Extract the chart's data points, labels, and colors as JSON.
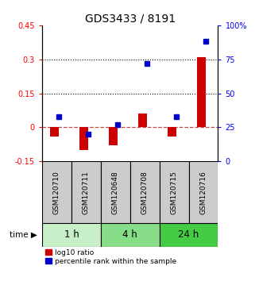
{
  "title": "GDS3433 / 8191",
  "samples": [
    "GSM120710",
    "GSM120711",
    "GSM120648",
    "GSM120708",
    "GSM120715",
    "GSM120716"
  ],
  "log10_ratio": [
    -0.04,
    -0.1,
    -0.08,
    0.06,
    -0.04,
    0.31
  ],
  "percentile_rank": [
    33,
    20,
    27,
    72,
    33,
    88
  ],
  "groups": [
    {
      "label": "1 h",
      "indices": [
        0,
        1
      ],
      "color": "#c8f0c8"
    },
    {
      "label": "4 h",
      "indices": [
        2,
        3
      ],
      "color": "#88dd88"
    },
    {
      "label": "24 h",
      "indices": [
        4,
        5
      ],
      "color": "#44cc44"
    }
  ],
  "bar_color_red": "#cc0000",
  "bar_color_blue": "#0000cc",
  "left_ylim": [
    -0.15,
    0.45
  ],
  "right_ylim": [
    0,
    100
  ],
  "left_yticks": [
    -0.15,
    0,
    0.15,
    0.3,
    0.45
  ],
  "right_yticks": [
    0,
    25,
    50,
    75,
    100
  ],
  "left_ytick_labels": [
    "-0.15",
    "0",
    "0.15",
    "0.3",
    "0.45"
  ],
  "right_ytick_labels": [
    "0",
    "25",
    "50",
    "75",
    "100%"
  ],
  "hlines": [
    0.15,
    0.3
  ],
  "zero_line": 0.0,
  "bg_color": "#ffffff",
  "xlabel_time": "time",
  "legend_red": "log10 ratio",
  "legend_blue": "percentile rank within the sample",
  "bar_width": 0.3,
  "sample_label_fontsize": 6.5,
  "title_fontsize": 10,
  "group_label_fontsize": 8.5
}
